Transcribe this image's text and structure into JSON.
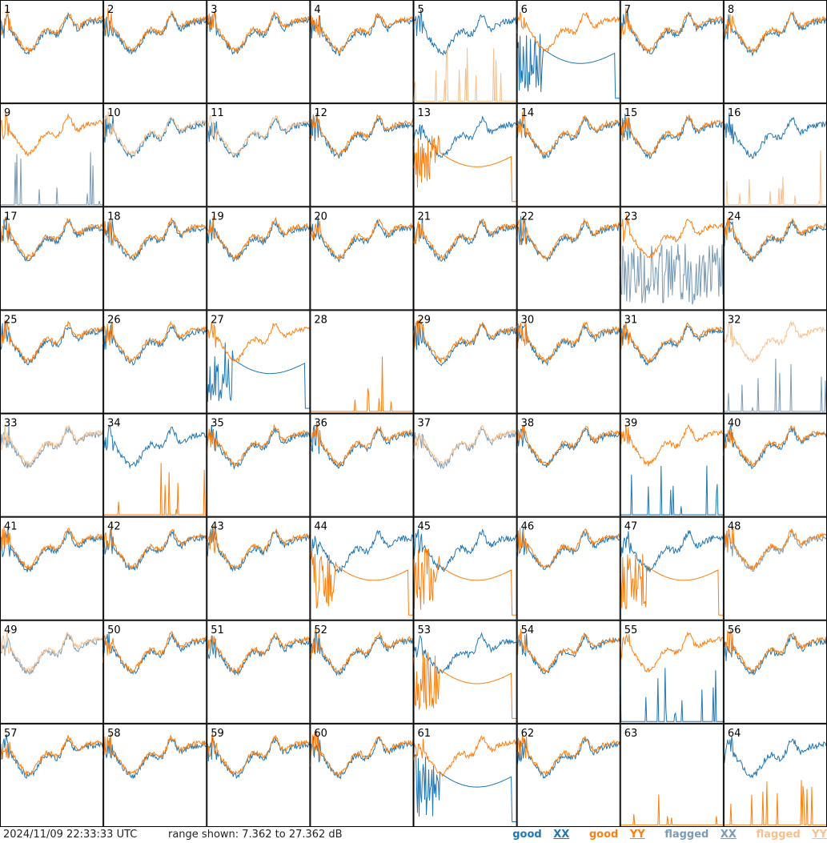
{
  "footer": {
    "timestamp": "2024/11/09 22:33:33 UTC",
    "range_label": "range shown: 7.362 to 27.362 dB"
  },
  "legend": [
    {
      "word": "good",
      "pol": "XX",
      "color": "#1f77b4"
    },
    {
      "word": "good",
      "pol": "YY",
      "color": "#ff7f0e"
    },
    {
      "word": "flagged",
      "pol": "XX",
      "color": "#7a9bb5"
    },
    {
      "word": "flagged",
      "pol": "YY",
      "color": "#f7c08e"
    }
  ],
  "chart_data": {
    "type": "line",
    "ylim": [
      7.362,
      27.362
    ],
    "yunit": "dB",
    "grid": {
      "rows": 8,
      "cols": 8
    },
    "panel_labels": [
      "1",
      "2",
      "3",
      "4",
      "5",
      "6",
      "7",
      "8",
      "9",
      "10",
      "11",
      "12",
      "13",
      "14",
      "15",
      "16",
      "17",
      "18",
      "19",
      "20",
      "21",
      "22",
      "23",
      "24",
      "25",
      "26",
      "27",
      "28",
      "29",
      "30",
      "31",
      "32",
      "33",
      "34",
      "35",
      "36",
      "37",
      "38",
      "39",
      "40",
      "41",
      "42",
      "43",
      "44",
      "45",
      "46",
      "47",
      "48",
      "49",
      "50",
      "51",
      "52",
      "53",
      "54",
      "55",
      "56",
      "57",
      "58",
      "59",
      "60",
      "61",
      "62",
      "63",
      "64"
    ],
    "colors": {
      "good_xx": "#1f77b4",
      "good_yy": "#ff7f0e",
      "flagged_xx": "#7a9bb5",
      "flagged_yy": "#f7c08e"
    },
    "series_types": [
      "good_xx",
      "good_yy",
      "flagged_xx",
      "flagged_yy"
    ],
    "panels": {
      "5": {
        "yy": "flagged",
        "yy_shape": "spikes"
      },
      "6": {
        "xx_shape": "broken"
      },
      "9": {
        "xx": "flagged",
        "xx_shape": "spikes"
      },
      "10": {
        "yy": "flagged"
      },
      "11": {
        "yy": "flagged"
      },
      "13": {
        "yy_shape": "broken"
      },
      "16": {
        "yy": "flagged",
        "yy_shape": "spikes"
      },
      "23": {
        "xx": "flagged",
        "xx_shape": "noise"
      },
      "27": {
        "xx_shape": "broken"
      },
      "28": {
        "xx": "none",
        "yy_shape": "spikes"
      },
      "32": {
        "xx": "flagged",
        "xx_shape": "spikes",
        "yy": "flagged"
      },
      "33": {
        "xx": "flagged",
        "yy": "flagged"
      },
      "34": {
        "yy_shape": "spikes"
      },
      "37": {
        "xx": "flagged",
        "yy": "flagged"
      },
      "39": {
        "xx_shape": "spikes"
      },
      "44": {
        "yy_shape": "broken"
      },
      "45": {
        "yy_shape": "broken"
      },
      "47": {
        "yy_shape": "broken"
      },
      "48": {
        "xx": "flagged"
      },
      "49": {
        "xx": "flagged",
        "yy": "flagged"
      },
      "53": {
        "yy_shape": "broken"
      },
      "55": {
        "xx_shape": "spikes"
      },
      "61": {
        "xx_shape": "broken"
      },
      "63": {
        "xx": "none",
        "yy_shape": "spikes"
      },
      "64": {
        "yy_shape": "spikes"
      }
    }
  }
}
